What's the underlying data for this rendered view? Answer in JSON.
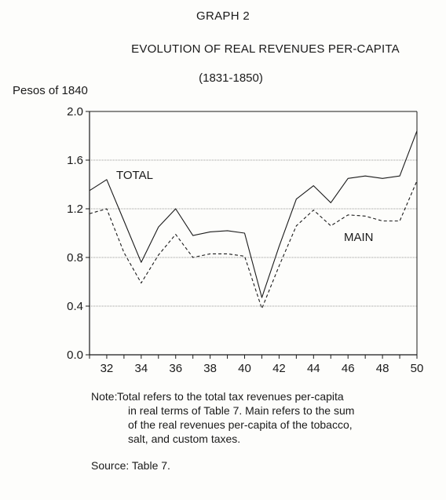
{
  "graph_number": "GRAPH 2",
  "title": "EVOLUTION OF REAL REVENUES PER-CAPITA",
  "subtitle": "(1831-1850)",
  "y_unit_label": "Pesos of 1840",
  "note": {
    "prefix": "Note:",
    "first_line": "Total refers to the total tax revenues per-capita",
    "lines": [
      "in real terms of Table 7. Main refers to the sum",
      "of the real revenues per-capita of the tobacco,",
      "salt, and custom taxes."
    ]
  },
  "source": "Source: Table 7.",
  "chart_data": {
    "type": "line",
    "title": "EVOLUTION OF REAL REVENUES PER-CAPITA",
    "subtitle": "(1831-1850)",
    "ylabel": "Pesos of 1840",
    "xlabel": "",
    "x": [
      31,
      32,
      33,
      34,
      35,
      36,
      37,
      38,
      39,
      40,
      41,
      42,
      43,
      44,
      45,
      46,
      47,
      48,
      49,
      50
    ],
    "xlim": [
      31,
      50
    ],
    "ylim": [
      0.0,
      2.0
    ],
    "x_ticks": [
      "32",
      "34",
      "36",
      "38",
      "40",
      "42",
      "44",
      "46",
      "48",
      "50"
    ],
    "y_ticks": [
      "0.0",
      "0.4",
      "0.8",
      "1.2",
      "1.6",
      "2.0"
    ],
    "grid": "horizontal",
    "series": [
      {
        "name": "TOTAL",
        "style": "solid",
        "values": [
          1.35,
          1.44,
          1.1,
          0.76,
          1.05,
          1.2,
          0.98,
          1.01,
          1.02,
          1.0,
          0.47,
          0.89,
          1.28,
          1.39,
          1.25,
          1.45,
          1.47,
          1.45,
          1.47,
          1.84
        ]
      },
      {
        "name": "MAIN",
        "style": "dashed",
        "values": [
          1.16,
          1.2,
          0.84,
          0.59,
          0.82,
          0.99,
          0.8,
          0.83,
          0.83,
          0.81,
          0.38,
          0.73,
          1.06,
          1.19,
          1.06,
          1.15,
          1.14,
          1.1,
          1.1,
          1.43
        ]
      }
    ]
  }
}
